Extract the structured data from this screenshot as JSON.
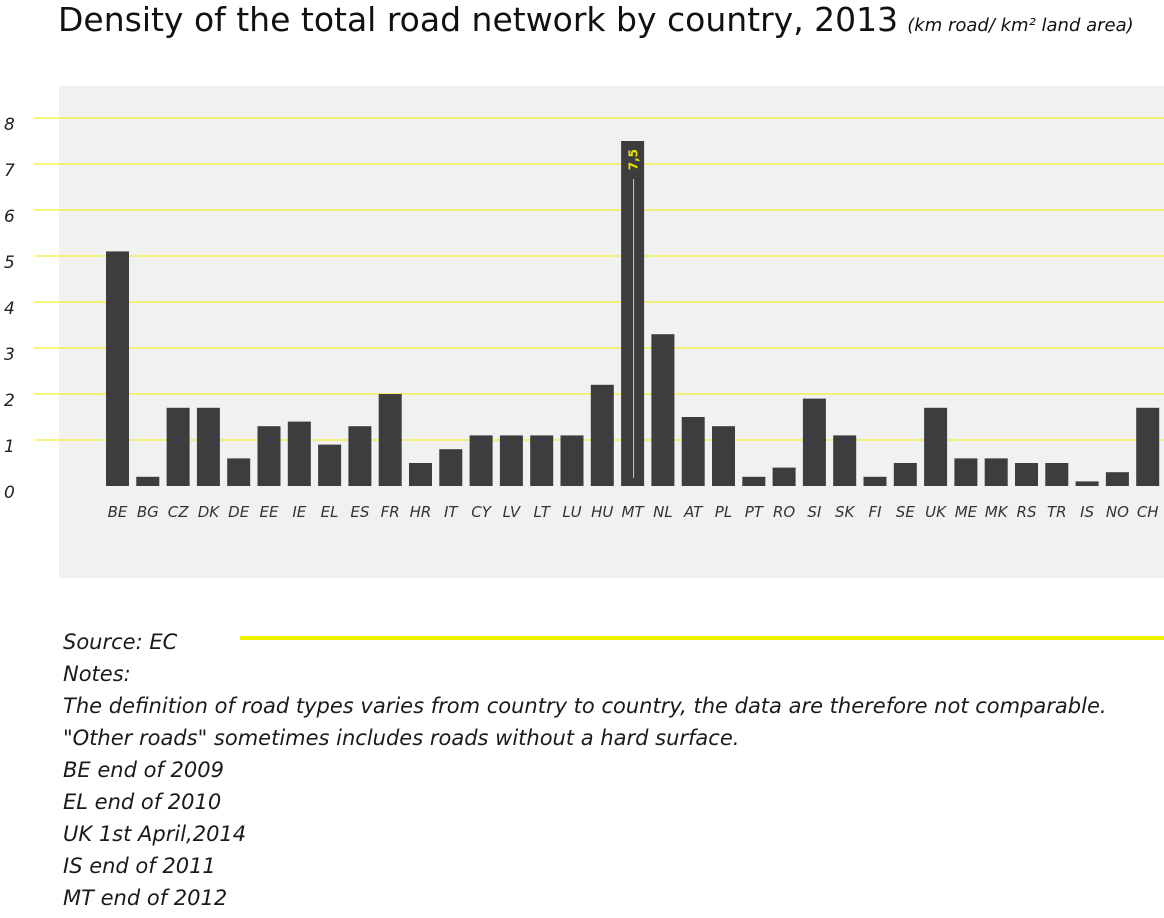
{
  "header": {
    "title": "Density of the total road network by country, 2013",
    "unit": "(km road/ km² land area)"
  },
  "chart_data": {
    "type": "bar",
    "title": "Density of the total road network by country, 2013",
    "subtitle": "(km road/ km² land area)",
    "xlabel": "",
    "ylabel": "",
    "ylim": [
      0,
      8
    ],
    "yticks": [
      0,
      1,
      2,
      3,
      4,
      5,
      6,
      7,
      8
    ],
    "grid": true,
    "categories": [
      "BE",
      "BG",
      "CZ",
      "DK",
      "DE",
      "EE",
      "IE",
      "EL",
      "ES",
      "FR",
      "HR",
      "IT",
      "CY",
      "LV",
      "LT",
      "LU",
      "HU",
      "MT",
      "NL",
      "AT",
      "PL",
      "PT",
      "RO",
      "SI",
      "SK",
      "FI",
      "SE",
      "UK",
      "ME",
      "MK",
      "RS",
      "TR",
      "IS",
      "NO",
      "CH"
    ],
    "values": [
      5.1,
      0.2,
      1.7,
      1.7,
      0.6,
      1.3,
      1.4,
      0.9,
      1.3,
      2.0,
      0.5,
      0.8,
      1.1,
      1.1,
      1.1,
      1.1,
      2.2,
      7.5,
      3.3,
      1.5,
      1.3,
      0.2,
      0.4,
      1.9,
      1.1,
      0.2,
      0.5,
      1.7,
      0.6,
      0.6,
      0.5,
      0.5,
      0.1,
      0.3,
      1.7
    ],
    "annotations": [
      {
        "category": "MT",
        "label": "7,5"
      }
    ],
    "colors": {
      "bar": "#3d3d3f",
      "grid": "#f0f000",
      "annotation": "#e6e600",
      "background": "#f1f1f1"
    }
  },
  "footer": {
    "source": "Source:  EC",
    "notes_heading": "Notes:",
    "notes": [
      "The definition of road types varies from country to country, the data are therefore not comparable.",
      "\"Other roads\" sometimes includes roads without a hard surface.",
      "BE end of 2009",
      "EL end of 2010",
      "UK 1st April,2014",
      "IS end of 2011",
      "MT end of 2012"
    ]
  }
}
